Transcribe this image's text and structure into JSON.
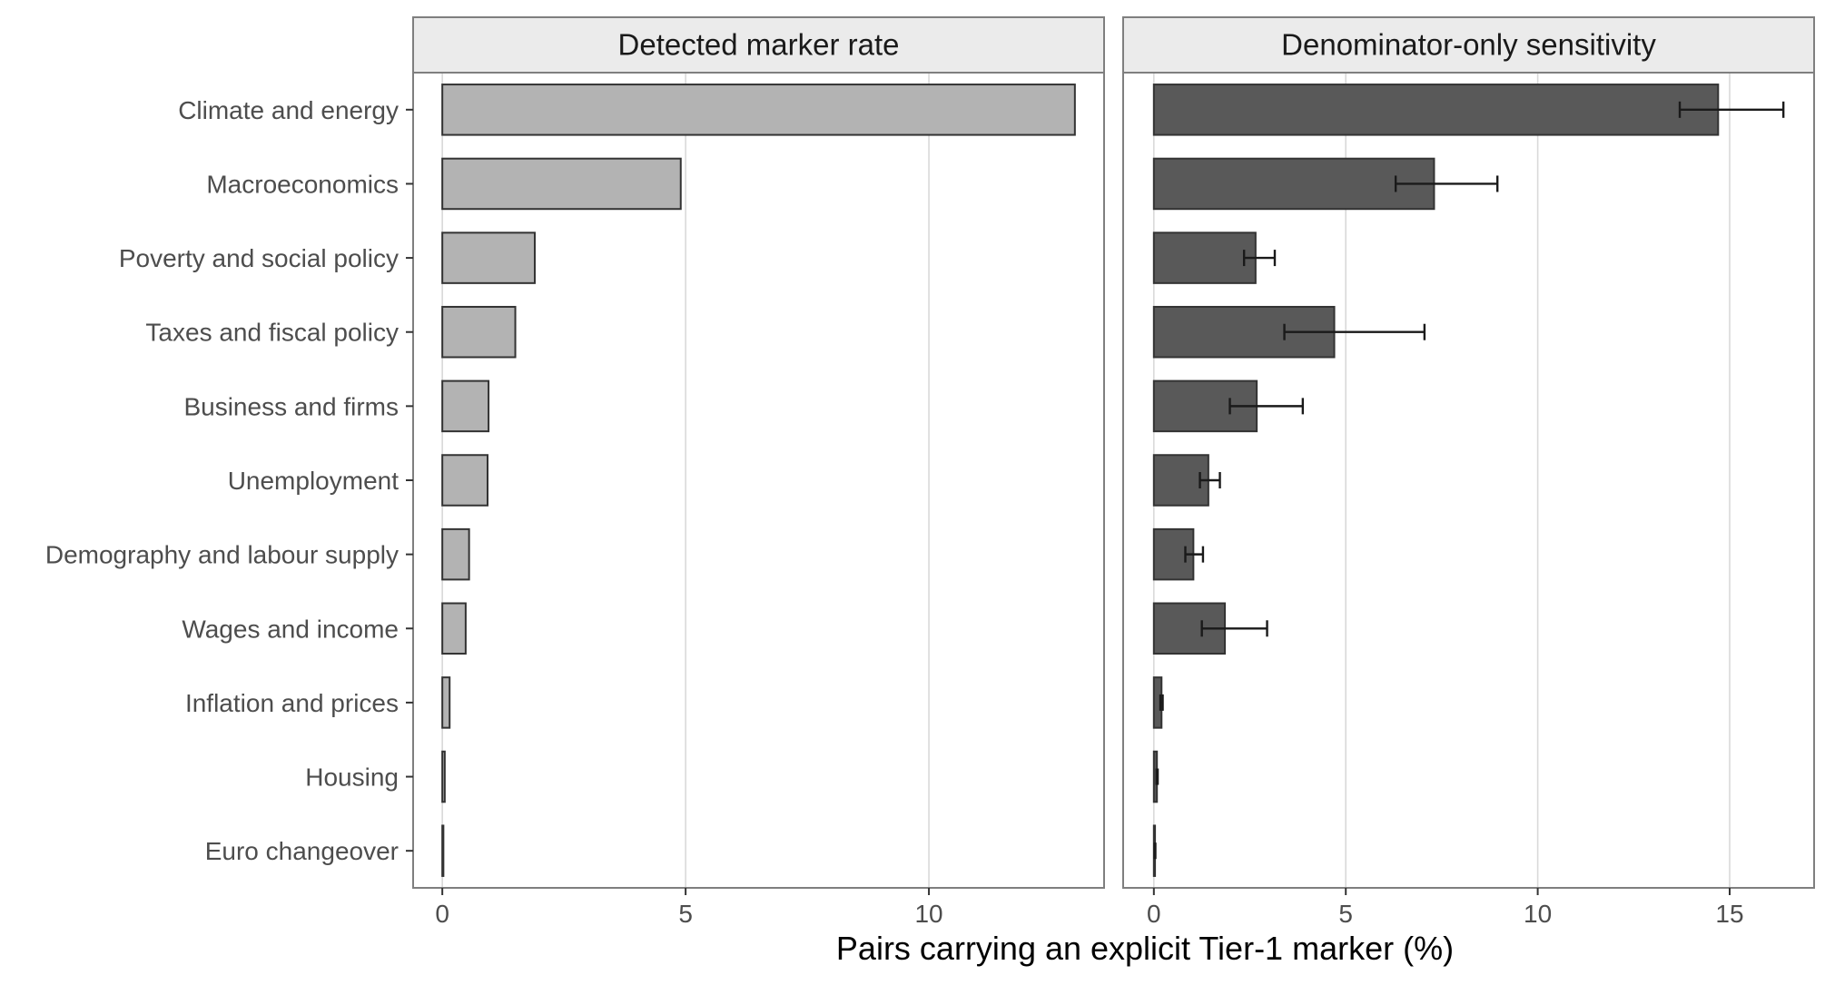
{
  "chart_data": {
    "type": "bar",
    "orientation": "horizontal",
    "xlabel": "Pairs carrying an explicit Tier-1 marker (%)",
    "categories": [
      "Climate and energy",
      "Macroeconomics",
      "Poverty and social policy",
      "Taxes and fiscal policy",
      "Business and firms",
      "Unemployment",
      "Demography and labour supply",
      "Wages and income",
      "Inflation and prices",
      "Housing",
      "Euro changeover"
    ],
    "panels": [
      {
        "title": "Detected marker rate",
        "fill": "#b3b3b3",
        "xlim": [
          -0.6,
          13.6
        ],
        "xticks": [
          0,
          5,
          10
        ],
        "values": [
          13.0,
          4.9,
          1.9,
          1.5,
          0.95,
          0.93,
          0.55,
          0.48,
          0.15,
          0.05,
          0.02
        ]
      },
      {
        "title": "Denominator-only sensitivity",
        "fill": "#595959",
        "xlim": [
          -0.8,
          17.2
        ],
        "xticks": [
          0,
          5,
          10,
          15
        ],
        "values": [
          14.7,
          7.3,
          2.65,
          4.7,
          2.68,
          1.42,
          1.03,
          1.85,
          0.2,
          0.08,
          0.03
        ],
        "error_low": [
          13.7,
          6.3,
          2.35,
          3.4,
          1.98,
          1.2,
          0.82,
          1.25,
          0.17,
          0.07,
          0.02
        ],
        "error_high": [
          16.4,
          8.95,
          3.15,
          7.05,
          3.88,
          1.72,
          1.28,
          2.95,
          0.23,
          0.1,
          0.04
        ]
      }
    ],
    "grid": true,
    "legend": "none"
  },
  "colors": {
    "strip_fill": "#ebebeb",
    "panel_border": "#7f7f7f",
    "grid": "#d9d9d9",
    "bar_outline": "#333333",
    "error_bar": "#1a1a1a"
  }
}
